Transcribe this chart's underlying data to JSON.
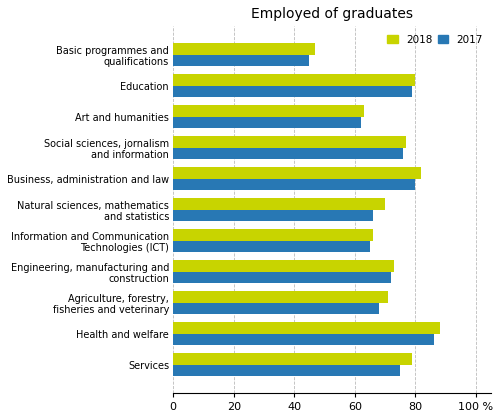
{
  "title": "Employed of graduates",
  "categories": [
    "Basic programmes and\nqualifications",
    "Education",
    "Art and humanities",
    "Social sciences, jornalism\nand information",
    "Business, administration and law",
    "Natural sciences, mathematics\nand statistics",
    "Information and Communication\nTechnologies (ICT)",
    "Engineering, manufacturing and\nconstruction",
    "Agriculture, forestry,\nfisheries and veterinary",
    "Health and welfare",
    "Services"
  ],
  "values_2018": [
    47,
    80,
    63,
    77,
    82,
    70,
    66,
    73,
    71,
    88,
    79
  ],
  "values_2017": [
    45,
    79,
    62,
    76,
    80,
    66,
    65,
    72,
    68,
    86,
    75
  ],
  "color_2018": "#c8d400",
  "color_2017": "#2878b4",
  "xlim": [
    0,
    105
  ],
  "xticks": [
    0,
    20,
    40,
    60,
    80,
    100
  ],
  "xticklabels": [
    "0",
    "20",
    "40",
    "60",
    "80",
    "100 %"
  ],
  "legend_2018": "2018",
  "legend_2017": "2017",
  "background_color": "#ffffff",
  "bar_height": 0.38,
  "grid_color": "#aaaaaa",
  "title_fontsize": 10,
  "label_fontsize": 7,
  "tick_fontsize": 8
}
